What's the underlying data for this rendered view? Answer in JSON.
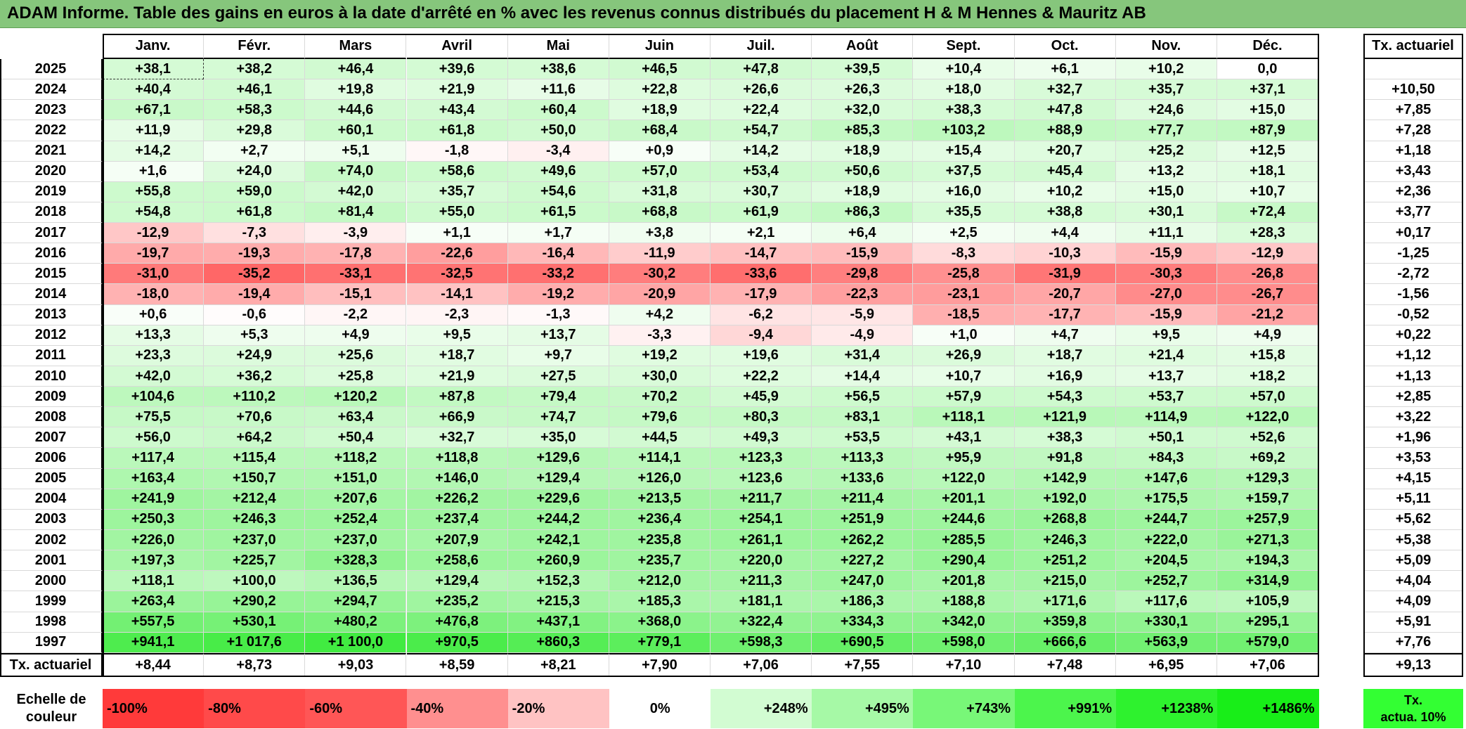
{
  "title": "ADAM Informe. Table des gains en euros à la date d'arrêté en % avec les revenus connus distribués du placement H & M Hennes & Mauritz AB",
  "months": [
    "Janv.",
    "Févr.",
    "Mars",
    "Avril",
    "Mai",
    "Juin",
    "Juil.",
    "Août",
    "Sept.",
    "Oct.",
    "Nov.",
    "Déc."
  ],
  "ta_header": "Tx. actuariel",
  "rows": [
    {
      "year": "2025",
      "values": [
        "+38,1",
        "+38,2",
        "+46,4",
        "+39,6",
        "+38,6",
        "+46,5",
        "+47,8",
        "+39,5",
        "+10,4",
        "+6,1",
        "+10,2",
        "0,0"
      ],
      "ta": ""
    },
    {
      "year": "2024",
      "values": [
        "+40,4",
        "+46,1",
        "+19,8",
        "+21,9",
        "+11,6",
        "+22,8",
        "+26,6",
        "+26,3",
        "+18,0",
        "+32,7",
        "+35,7",
        "+37,1"
      ],
      "ta": "+10,50"
    },
    {
      "year": "2023",
      "values": [
        "+67,1",
        "+58,3",
        "+44,6",
        "+43,4",
        "+60,4",
        "+18,9",
        "+22,4",
        "+32,0",
        "+38,3",
        "+47,8",
        "+24,6",
        "+15,0"
      ],
      "ta": "+7,85"
    },
    {
      "year": "2022",
      "values": [
        "+11,9",
        "+29,8",
        "+60,1",
        "+61,8",
        "+50,0",
        "+68,4",
        "+54,7",
        "+85,3",
        "+103,2",
        "+88,9",
        "+77,7",
        "+87,9"
      ],
      "ta": "+7,28"
    },
    {
      "year": "2021",
      "values": [
        "+14,2",
        "+2,7",
        "+5,1",
        "-1,8",
        "-3,4",
        "+0,9",
        "+14,2",
        "+18,9",
        "+15,4",
        "+20,7",
        "+25,2",
        "+12,5"
      ],
      "ta": "+1,18"
    },
    {
      "year": "2020",
      "values": [
        "+1,6",
        "+24,0",
        "+74,0",
        "+58,6",
        "+49,6",
        "+57,0",
        "+53,4",
        "+50,6",
        "+37,5",
        "+45,4",
        "+13,2",
        "+18,1"
      ],
      "ta": "+3,43"
    },
    {
      "year": "2019",
      "values": [
        "+55,8",
        "+59,0",
        "+42,0",
        "+35,7",
        "+54,6",
        "+31,8",
        "+30,7",
        "+18,9",
        "+16,0",
        "+10,2",
        "+15,0",
        "+10,7"
      ],
      "ta": "+2,36"
    },
    {
      "year": "2018",
      "values": [
        "+54,8",
        "+61,8",
        "+81,4",
        "+55,0",
        "+61,5",
        "+68,8",
        "+61,9",
        "+86,3",
        "+35,5",
        "+38,8",
        "+30,1",
        "+72,4"
      ],
      "ta": "+3,77"
    },
    {
      "year": "2017",
      "values": [
        "-12,9",
        "-7,3",
        "-3,9",
        "+1,1",
        "+1,7",
        "+3,8",
        "+2,1",
        "+6,4",
        "+2,5",
        "+4,4",
        "+11,1",
        "+28,3"
      ],
      "ta": "+0,17"
    },
    {
      "year": "2016",
      "values": [
        "-19,7",
        "-19,3",
        "-17,8",
        "-22,6",
        "-16,4",
        "-11,9",
        "-14,7",
        "-15,9",
        "-8,3",
        "-10,3",
        "-15,9",
        "-12,9"
      ],
      "ta": "-1,25"
    },
    {
      "year": "2015",
      "values": [
        "-31,0",
        "-35,2",
        "-33,1",
        "-32,5",
        "-33,2",
        "-30,2",
        "-33,6",
        "-29,8",
        "-25,8",
        "-31,9",
        "-30,3",
        "-26,8"
      ],
      "ta": "-2,72"
    },
    {
      "year": "2014",
      "values": [
        "-18,0",
        "-19,4",
        "-15,1",
        "-14,1",
        "-19,2",
        "-20,9",
        "-17,9",
        "-22,3",
        "-23,1",
        "-20,7",
        "-27,0",
        "-26,7"
      ],
      "ta": "-1,56"
    },
    {
      "year": "2013",
      "values": [
        "+0,6",
        "-0,6",
        "-2,2",
        "-2,3",
        "-1,3",
        "+4,2",
        "-6,2",
        "-5,9",
        "-18,5",
        "-17,7",
        "-15,9",
        "-21,2"
      ],
      "ta": "-0,52"
    },
    {
      "year": "2012",
      "values": [
        "+13,3",
        "+5,3",
        "+4,9",
        "+9,5",
        "+13,7",
        "-3,3",
        "-9,4",
        "-4,9",
        "+1,0",
        "+4,7",
        "+9,5",
        "+4,9"
      ],
      "ta": "+0,22"
    },
    {
      "year": "2011",
      "values": [
        "+23,3",
        "+24,9",
        "+25,6",
        "+18,7",
        "+9,7",
        "+19,2",
        "+19,6",
        "+31,4",
        "+26,9",
        "+18,7",
        "+21,4",
        "+15,8"
      ],
      "ta": "+1,12"
    },
    {
      "year": "2010",
      "values": [
        "+42,0",
        "+36,2",
        "+25,8",
        "+21,9",
        "+27,5",
        "+30,0",
        "+22,2",
        "+14,4",
        "+10,7",
        "+16,9",
        "+13,7",
        "+18,2"
      ],
      "ta": "+1,13"
    },
    {
      "year": "2009",
      "values": [
        "+104,6",
        "+110,2",
        "+120,2",
        "+87,8",
        "+79,4",
        "+70,2",
        "+45,9",
        "+56,5",
        "+57,9",
        "+54,3",
        "+53,7",
        "+57,0"
      ],
      "ta": "+2,85"
    },
    {
      "year": "2008",
      "values": [
        "+75,5",
        "+70,6",
        "+63,4",
        "+66,9",
        "+74,7",
        "+79,6",
        "+80,3",
        "+83,1",
        "+118,1",
        "+121,9",
        "+114,9",
        "+122,0"
      ],
      "ta": "+3,22"
    },
    {
      "year": "2007",
      "values": [
        "+56,0",
        "+64,2",
        "+50,4",
        "+32,7",
        "+35,0",
        "+44,5",
        "+49,3",
        "+53,5",
        "+43,1",
        "+38,3",
        "+50,1",
        "+52,6"
      ],
      "ta": "+1,96"
    },
    {
      "year": "2006",
      "values": [
        "+117,4",
        "+115,4",
        "+118,2",
        "+118,8",
        "+129,6",
        "+114,1",
        "+123,3",
        "+113,3",
        "+95,9",
        "+91,8",
        "+84,3",
        "+69,2"
      ],
      "ta": "+3,53"
    },
    {
      "year": "2005",
      "values": [
        "+163,4",
        "+150,7",
        "+151,0",
        "+146,0",
        "+129,4",
        "+126,0",
        "+123,6",
        "+133,6",
        "+122,0",
        "+142,9",
        "+147,6",
        "+129,3"
      ],
      "ta": "+4,15"
    },
    {
      "year": "2004",
      "values": [
        "+241,9",
        "+212,4",
        "+207,6",
        "+226,2",
        "+229,6",
        "+213,5",
        "+211,7",
        "+211,4",
        "+201,1",
        "+192,0",
        "+175,5",
        "+159,7"
      ],
      "ta": "+5,11"
    },
    {
      "year": "2003",
      "values": [
        "+250,3",
        "+246,3",
        "+252,4",
        "+237,4",
        "+244,2",
        "+236,4",
        "+254,1",
        "+251,9",
        "+244,6",
        "+268,8",
        "+244,7",
        "+257,9"
      ],
      "ta": "+5,62"
    },
    {
      "year": "2002",
      "values": [
        "+226,0",
        "+237,0",
        "+237,0",
        "+207,9",
        "+242,1",
        "+235,8",
        "+261,1",
        "+262,2",
        "+285,5",
        "+246,3",
        "+222,0",
        "+271,3"
      ],
      "ta": "+5,38"
    },
    {
      "year": "2001",
      "values": [
        "+197,3",
        "+225,7",
        "+328,3",
        "+258,6",
        "+260,9",
        "+235,7",
        "+220,0",
        "+227,2",
        "+290,4",
        "+251,2",
        "+204,5",
        "+194,3"
      ],
      "ta": "+5,09"
    },
    {
      "year": "2000",
      "values": [
        "+118,1",
        "+100,0",
        "+136,5",
        "+129,4",
        "+152,3",
        "+212,0",
        "+211,3",
        "+247,0",
        "+201,8",
        "+215,0",
        "+252,7",
        "+314,9"
      ],
      "ta": "+4,04"
    },
    {
      "year": "1999",
      "values": [
        "+263,4",
        "+290,2",
        "+294,7",
        "+235,2",
        "+215,3",
        "+185,3",
        "+181,1",
        "+186,3",
        "+188,8",
        "+171,6",
        "+117,6",
        "+105,9"
      ],
      "ta": "+4,09"
    },
    {
      "year": "1998",
      "values": [
        "+557,5",
        "+530,1",
        "+480,2",
        "+476,8",
        "+437,1",
        "+368,0",
        "+322,4",
        "+334,3",
        "+342,0",
        "+359,8",
        "+330,1",
        "+295,1"
      ],
      "ta": "+5,91"
    },
    {
      "year": "1997",
      "values": [
        "+941,1",
        "+1 017,6",
        "+1 100,0",
        "+970,5",
        "+860,3",
        "+779,1",
        "+598,3",
        "+690,5",
        "+598,0",
        "+666,6",
        "+563,9",
        "+579,0"
      ],
      "ta": "+7,76"
    }
  ],
  "bottom": {
    "label": "Tx. actuariel",
    "values": [
      "+8,44",
      "+8,73",
      "+9,03",
      "+8,59",
      "+8,21",
      "+7,90",
      "+7,06",
      "+7,55",
      "+7,10",
      "+7,48",
      "+6,95",
      "+7,06"
    ],
    "ta": "+9,13"
  },
  "scale": {
    "label_line1": "Echelle de",
    "label_line2": "couleur",
    "items": [
      {
        "label": "-100%",
        "color": "#ff3a3a",
        "align": "left"
      },
      {
        "label": "-80%",
        "color": "#ff4a4a",
        "align": "left"
      },
      {
        "label": "-60%",
        "color": "#ff5656",
        "align": "left"
      },
      {
        "label": "-40%",
        "color": "#ff8f8f",
        "align": "left"
      },
      {
        "label": "-20%",
        "color": "#ffc3c3",
        "align": "left"
      },
      {
        "label": "0%",
        "color": "#ffffff",
        "align": "center"
      },
      {
        "label": "+248%",
        "color": "#d2fcd2",
        "align": "right"
      },
      {
        "label": "+495%",
        "color": "#a6f9a6",
        "align": "right"
      },
      {
        "label": "+743%",
        "color": "#78f778",
        "align": "right"
      },
      {
        "label": "+991%",
        "color": "#4cf54c",
        "align": "right"
      },
      {
        "label": "+1238%",
        "color": "#2ef22e",
        "align": "right"
      },
      {
        "label": "+1486%",
        "color": "#18ee18",
        "align": "right"
      }
    ],
    "ta_line1": "Tx.",
    "ta_line2": "actua. 10%"
  }
}
